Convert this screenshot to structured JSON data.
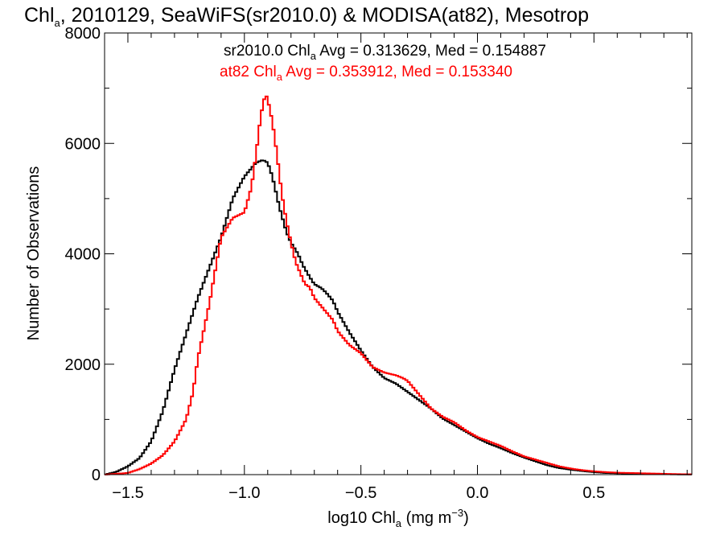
{
  "chart_data": {
    "type": "line",
    "title": {
      "prefix": "Chl",
      "prefix_sub": "a",
      "rest": ", 2010129, SeaWiFS(sr2010.0) & MODISA(at82), Mesotrop"
    },
    "xlabel": {
      "pre": "log10 Chl",
      "sub": "a",
      "mid": " (mg m",
      "sup": "−3",
      "post": ")"
    },
    "ylabel": "Number of Observations",
    "xlim": [
      -1.6,
      0.92
    ],
    "ylim": [
      0,
      8000
    ],
    "x_ticks": [
      -1.5,
      -1.0,
      -0.5,
      0.0,
      0.5
    ],
    "x_tick_labels": [
      "−1.5",
      "−1.0",
      "−0.5",
      "0.0",
      "0.5"
    ],
    "y_ticks": [
      0,
      2000,
      4000,
      6000,
      8000
    ],
    "y_tick_labels": [
      "0",
      "2000",
      "4000",
      "6000",
      "8000"
    ],
    "grid": false,
    "annotations": [
      {
        "pre": "sr2010.0 Chl",
        "sub": "a",
        "post": " Avg = 0.313629, Med = 0.154887",
        "color": "#000000"
      },
      {
        "pre": "at82 Chl",
        "sub": "a",
        "post": " Avg = 0.353912, Med = 0.153340",
        "color": "#ff0000"
      }
    ],
    "series": [
      {
        "color": "#000000",
        "x": [
          -1.6,
          -1.55,
          -1.5,
          -1.45,
          -1.4,
          -1.35,
          -1.3,
          -1.25,
          -1.2,
          -1.15,
          -1.1,
          -1.05,
          -1.0,
          -0.95,
          -0.92,
          -0.9,
          -0.88,
          -0.85,
          -0.82,
          -0.8,
          -0.77,
          -0.75,
          -0.72,
          -0.7,
          -0.67,
          -0.65,
          -0.62,
          -0.6,
          -0.55,
          -0.5,
          -0.45,
          -0.4,
          -0.35,
          -0.3,
          -0.25,
          -0.2,
          -0.15,
          -0.1,
          -0.05,
          0.0,
          0.05,
          0.1,
          0.15,
          0.2,
          0.25,
          0.3,
          0.35,
          0.4,
          0.45,
          0.5,
          0.55,
          0.6,
          0.65,
          0.7,
          0.75,
          0.8,
          0.85,
          0.92
        ],
        "values": [
          0,
          50,
          150,
          300,
          600,
          1150,
          1900,
          2550,
          3200,
          3750,
          4300,
          5000,
          5400,
          5650,
          5700,
          5650,
          5400,
          4850,
          4400,
          4200,
          4000,
          3800,
          3580,
          3450,
          3380,
          3300,
          3150,
          2950,
          2580,
          2250,
          1950,
          1750,
          1650,
          1500,
          1350,
          1200,
          1020,
          900,
          780,
          660,
          560,
          480,
          390,
          310,
          240,
          170,
          120,
          90,
          65,
          45,
          30,
          25,
          18,
          12,
          10,
          8,
          5,
          3
        ]
      },
      {
        "color": "#ff0000",
        "x": [
          -1.6,
          -1.5,
          -1.45,
          -1.4,
          -1.35,
          -1.3,
          -1.25,
          -1.22,
          -1.2,
          -1.15,
          -1.1,
          -1.05,
          -1.0,
          -0.97,
          -0.95,
          -0.93,
          -0.91,
          -0.9,
          -0.88,
          -0.86,
          -0.84,
          -0.82,
          -0.8,
          -0.78,
          -0.76,
          -0.74,
          -0.72,
          -0.7,
          -0.67,
          -0.65,
          -0.62,
          -0.6,
          -0.55,
          -0.5,
          -0.45,
          -0.4,
          -0.35,
          -0.32,
          -0.3,
          -0.25,
          -0.2,
          -0.15,
          -0.1,
          -0.05,
          0.0,
          0.05,
          0.1,
          0.15,
          0.2,
          0.25,
          0.3,
          0.35,
          0.4,
          0.45,
          0.5,
          0.55,
          0.6,
          0.65,
          0.7,
          0.75,
          0.8,
          0.85,
          0.92
        ],
        "values": [
          0,
          30,
          100,
          200,
          350,
          600,
          1000,
          1500,
          2100,
          3100,
          4300,
          4650,
          4750,
          5200,
          5800,
          6500,
          6900,
          6800,
          6400,
          5800,
          5100,
          4600,
          4200,
          3850,
          3650,
          3450,
          3400,
          3200,
          3050,
          2950,
          2800,
          2600,
          2350,
          2200,
          1950,
          1850,
          1800,
          1750,
          1700,
          1450,
          1200,
          1050,
          950,
          800,
          680,
          600,
          520,
          420,
          330,
          270,
          210,
          150,
          110,
          80,
          60,
          45,
          35,
          30,
          25,
          20,
          15,
          10,
          5
        ]
      }
    ]
  }
}
